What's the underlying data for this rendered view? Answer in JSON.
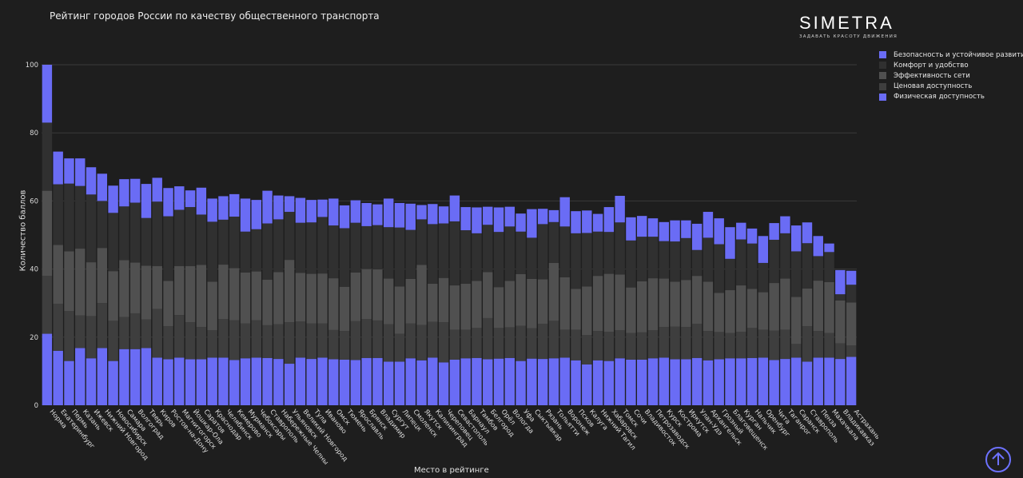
{
  "chart_data": {
    "type": "bar",
    "stacked": true,
    "title": "Рейтинг городов России по качеству общественного транспорта",
    "xlabel": "Место в рейтинге",
    "ylabel": "Количество баллов",
    "ylim": [
      0,
      100
    ],
    "yticks": [
      0,
      20,
      40,
      60,
      80,
      100
    ],
    "legend_position": "top-right",
    "categories": [
      "Норма",
      "Екатеринбург",
      "Пермь",
      "Казань",
      "Ижевск",
      "Нижний Новгород",
      "Новосибирск",
      "Самара",
      "Волгоград",
      "Тверь",
      "Киров",
      "Ростов-на-Дону",
      "Магнитогорск",
      "Йошкар-Ола",
      "Саратов",
      "Краснодар",
      "Челябинск",
      "Кемерово",
      "Мурманск",
      "Чебоксары",
      "Ставрополь",
      "Набережные Челны",
      "Ульяновск",
      "Великий Новгород",
      "Тула",
      "Иваново",
      "Омск",
      "Тюмень",
      "Ярославль",
      "Брянск",
      "Владимир",
      "Сургут",
      "Липецк",
      "Смоленск",
      "Якутск",
      "Калининград",
      "Череповец",
      "Севастополь",
      "Барнаул",
      "Тамбов",
      "Белгород",
      "Орёл",
      "Вологда",
      "Уфа",
      "Сыктывкар",
      "Рязань",
      "Тольятти",
      "Воронеж",
      "Псков",
      "Калуга",
      "Нижний Тагил",
      "Хабаровск",
      "Томск",
      "Сочи",
      "Владивосток",
      "Петрозаводск",
      "Курск",
      "Кострома",
      "Иркутск",
      "Улан-Удэ",
      "Архангельск",
      "Грозный",
      "Благовещенск",
      "Курган",
      "Нальчик",
      "Оренбург",
      "Чита",
      "Таганрог",
      "Саранск",
      "Ставрополь",
      "Пенза",
      "Махачкала",
      "Владикавказ",
      "Астрахань"
    ],
    "series": [
      {
        "name": "Физическая доступность",
        "color": "#6a6cf5",
        "values": [
          21,
          16,
          13,
          16.8,
          13.8,
          16.8,
          13,
          16.5,
          16.5,
          16.8,
          14,
          13.5,
          14,
          13.5,
          13.5,
          14,
          14,
          13.3,
          13.8,
          14,
          13.9,
          13.6,
          12.2,
          14,
          13.6,
          14,
          13.5,
          13.4,
          13.3,
          13.9,
          13.9,
          12.8,
          12.8,
          13.8,
          13.2,
          14,
          12.6,
          13.4,
          13.8,
          13.9,
          13.5,
          13.7,
          13.9,
          13,
          13.7,
          13.6,
          13.8,
          14,
          13.2,
          12,
          13.2,
          13,
          13.8,
          13.4,
          13.4,
          13.8,
          14,
          13.5,
          13.5,
          13.9,
          13.2,
          13.5,
          13.8,
          13.8,
          13.9,
          14,
          13.3,
          13.6,
          14,
          12.8,
          14,
          14,
          13.6,
          14.2
        ]
      },
      {
        "name": "Ценовая доступность",
        "color": "#3e3e3e",
        "values": [
          17,
          13.8,
          14.7,
          9.6,
          12.4,
          13.2,
          11.8,
          9.4,
          10.5,
          8.4,
          14.3,
          9.7,
          12.5,
          10.9,
          9.5,
          8,
          11.3,
          11.7,
          10.2,
          11,
          9.6,
          10.2,
          12.2,
          10.6,
          10.4,
          10,
          8.6,
          8.4,
          11.4,
          11.4,
          11,
          11,
          8.2,
          10.2,
          10.4,
          10.5,
          11.8,
          8.8,
          8.4,
          8.8,
          12.1,
          9,
          9,
          10.3,
          8.9,
          10.3,
          11,
          8.2,
          9,
          8.6,
          8.6,
          8.6,
          8.2,
          7.8,
          8,
          8.2,
          9,
          9.6,
          9.5,
          10,
          8.6,
          8,
          7.4,
          7.8,
          8.8,
          8.2,
          8.6,
          8.6,
          4,
          10.4,
          7.8,
          7.2,
          4.6,
          3.4
        ]
      },
      {
        "name": "Эффективность сети",
        "color": "#505050",
        "values": [
          25,
          17.3,
          17.5,
          19.6,
          15.8,
          16.2,
          14.6,
          16.7,
          14.9,
          15.8,
          12.6,
          13.3,
          14.4,
          16.5,
          18.2,
          14.3,
          16,
          15.3,
          15,
          14.3,
          13.4,
          15.3,
          18.3,
          14.3,
          14.6,
          14.7,
          15.2,
          13,
          14.3,
          14.7,
          15,
          13.4,
          13.9,
          13.1,
          17.6,
          11.2,
          13,
          13,
          13.5,
          13.8,
          13.5,
          12,
          13.6,
          15.2,
          14.5,
          13.1,
          17,
          15.4,
          12,
          14.3,
          16.2,
          17,
          16.4,
          13.4,
          15,
          15.3,
          14.2,
          13.2,
          13.8,
          14.1,
          14.5,
          11.5,
          12.6,
          13.6,
          11.5,
          11,
          14,
          15,
          13.8,
          11.1,
          14.8,
          15,
          12.6,
          12.6
        ]
      },
      {
        "name": "Комфорт и удобство",
        "color": "#303030",
        "values": [
          20,
          17.8,
          19.9,
          18.4,
          19.9,
          13.8,
          17.1,
          15.8,
          17.6,
          14,
          18.9,
          19,
          16.5,
          17.3,
          14.8,
          17.6,
          13.2,
          15.1,
          12,
          12.4,
          16.5,
          15.5,
          14.1,
          14.7,
          15.1,
          16.6,
          15.5,
          17.2,
          14.6,
          12.6,
          13,
          15.1,
          17.3,
          14.4,
          13.4,
          17.5,
          16,
          18.8,
          15.7,
          14,
          13.9,
          16.2,
          16,
          12.5,
          12.1,
          16.2,
          12,
          14.9,
          16.3,
          15.7,
          13,
          12.3,
          15.3,
          13.8,
          13.1,
          12.2,
          11,
          11.8,
          12.3,
          7.6,
          12.9,
          14.3,
          9.2,
          13.5,
          13.3,
          8.6,
          12.7,
          13.3,
          13.4,
          13.3,
          7.2,
          8.8,
          1.8,
          5.2
        ]
      },
      {
        "name": "Безопасность и устойчивое развитие",
        "color": "#6a6cf5",
        "values": [
          17,
          9.6,
          7.4,
          8.1,
          8,
          8,
          8,
          8,
          7,
          10,
          7,
          8.3,
          6.9,
          4.9,
          7.9,
          6.8,
          6.9,
          6.6,
          9.7,
          8.6,
          9.6,
          7,
          4.6,
          7.3,
          6.6,
          5.1,
          7.9,
          6.7,
          6.6,
          6.8,
          6.1,
          8.4,
          7.2,
          7.7,
          4.2,
          5.9,
          5,
          7.6,
          6.8,
          7.6,
          5.3,
          7.2,
          5.8,
          5.3,
          8.4,
          4.5,
          3.5,
          8.6,
          6.5,
          6.6,
          5.2,
          7.3,
          7.8,
          6.8,
          6.1,
          5.4,
          5.6,
          6.2,
          5.2,
          7.7,
          7.6,
          7.6,
          9.3,
          4.9,
          4.4,
          7.9,
          4.9,
          5,
          7.6,
          6.1,
          5.9,
          2.5,
          7.1,
          4.1
        ]
      }
    ]
  },
  "logo": {
    "brand": "SIMETRA",
    "tagline": "ЗАДАВАТЬ КРАСОТУ ДВИЖЕНИЯ"
  },
  "colors": {
    "background": "#1e1e1e",
    "accent": "#6a6cf5"
  },
  "controls": {
    "scroll_top_icon": "arrow-up-circle-icon"
  }
}
